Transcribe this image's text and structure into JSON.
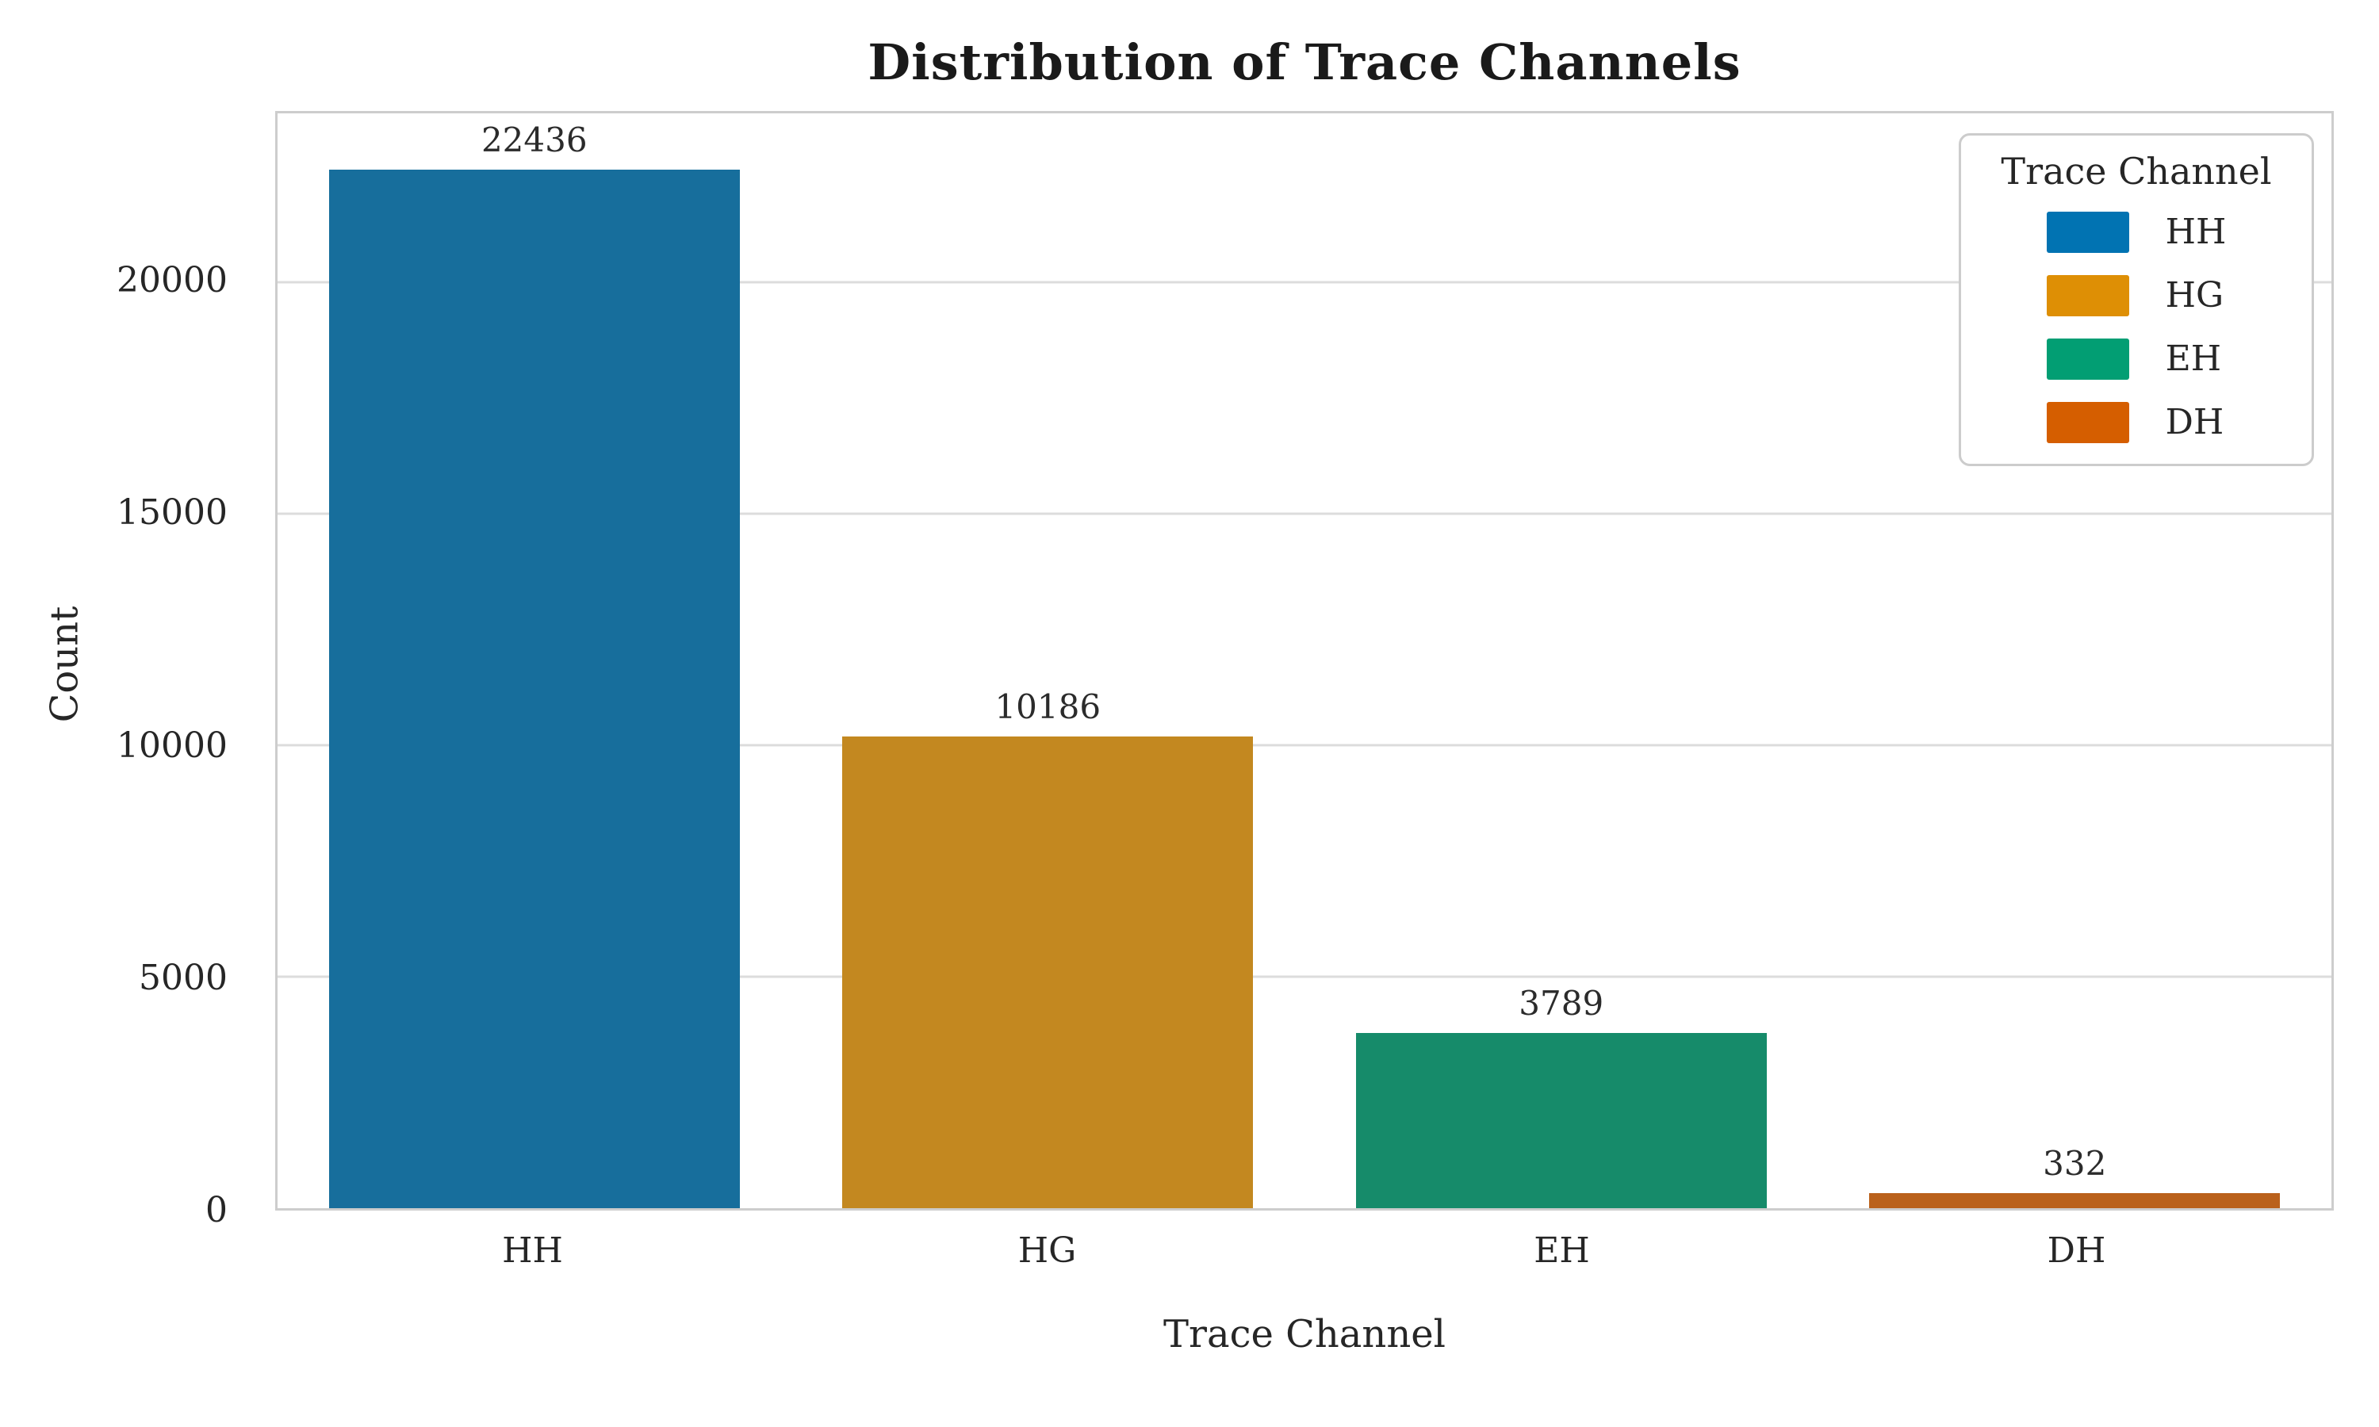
{
  "chart_data": {
    "type": "bar",
    "title": "Distribution of Trace Channels",
    "xlabel": "Trace Channel",
    "ylabel": "Count",
    "categories": [
      "HH",
      "HG",
      "EH",
      "DH"
    ],
    "values": [
      22436,
      10186,
      3789,
      332
    ],
    "bar_value_labels": [
      "22436",
      "10186",
      "3789",
      "332"
    ],
    "bar_colors": [
      "#176e9c",
      "#c38820",
      "#168b6a",
      "#ba611b"
    ],
    "ylim": [
      0,
      23650
    ],
    "yticks": [
      0,
      5000,
      10000,
      15000,
      20000
    ],
    "ytick_labels": [
      "0",
      "5000",
      "10000",
      "15000",
      "20000"
    ],
    "grid": "horizontal",
    "legend": {
      "title": "Trace Channel",
      "position": "upper right",
      "entries": [
        {
          "label": "HH",
          "color": "#0173b2"
        },
        {
          "label": "HG",
          "color": "#de8f05"
        },
        {
          "label": "EH",
          "color": "#029e73"
        },
        {
          "label": "DH",
          "color": "#d55e00"
        }
      ]
    },
    "style": {
      "gridline_color": "#dcdcdc",
      "spine_color": "#cdcdcd",
      "text_color": "#262626",
      "background": "#ffffff"
    }
  }
}
